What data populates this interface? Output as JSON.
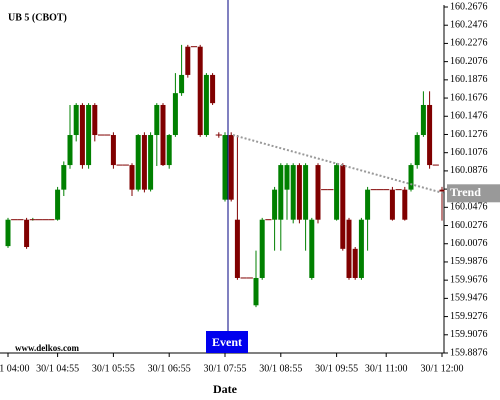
{
  "chart_data": {
    "type": "candlestick",
    "title": "UB 5 (CBOT)",
    "x_label": "Date",
    "watermark": "www.delkos.com",
    "event_label": "Event",
    "trend": {
      "label": "Trend",
      "values": [
        160.127,
        160.063
      ],
      "color": "#999999"
    },
    "up_color": "#008000",
    "down_color": "#800000",
    "categories": [
      "30/1 04:00",
      null,
      null,
      null,
      null,
      null,
      null,
      null,
      "30/1 04:55",
      null,
      null,
      null,
      null,
      null,
      null,
      null,
      null,
      "30/1 05:55",
      null,
      null,
      null,
      null,
      null,
      null,
      null,
      null,
      "30/1 06:55",
      null,
      null,
      null,
      null,
      null,
      null,
      null,
      null,
      "30/1 07:55",
      null,
      null,
      null,
      null,
      null,
      null,
      null,
      null,
      "30/1 08:55",
      null,
      null,
      null,
      null,
      null,
      null,
      null,
      null,
      "30/1 09:55",
      null,
      null,
      null,
      null,
      null,
      null,
      null,
      "30/1 11:00",
      null,
      null,
      null,
      null,
      null,
      null,
      null,
      null,
      "30/1 12:00"
    ],
    "open": [
      160.005,
      160.034,
      160.034,
      160.034,
      160.034,
      160.034,
      160.034,
      160.034,
      160.034,
      160.067,
      160.094,
      160.127,
      160.16,
      160.094,
      160.16,
      160.127,
      160.127,
      160.127,
      160.094,
      160.094,
      160.094,
      160.067,
      160.127,
      160.067,
      160.127,
      160.16,
      160.094,
      160.127,
      160.173,
      160.224,
      160.224,
      160.224,
      160.127,
      160.193,
      160.127,
      160.056,
      160.127,
      160.034,
      159.97,
      159.97,
      159.94,
      159.97,
      160.034,
      160.034,
      160.034,
      160.067,
      160.034,
      160.094,
      160.034,
      159.97,
      160.094,
      160.067,
      160.067,
      160.034,
      160.094,
      160.034,
      160.002,
      159.97,
      160.034,
      160.067,
      160.067,
      160.067,
      160.067,
      160.067,
      160.067,
      160.067,
      160.094,
      160.127,
      160.16,
      160.094,
      160.067
    ],
    "high": [
      160.036,
      160.034,
      160.034,
      160.036,
      160.036,
      160.034,
      160.034,
      160.034,
      160.07,
      160.098,
      160.16,
      160.162,
      160.162,
      160.162,
      160.162,
      160.127,
      160.127,
      160.13,
      160.094,
      160.094,
      160.096,
      160.128,
      160.13,
      160.13,
      160.162,
      160.162,
      160.128,
      160.195,
      160.226,
      160.226,
      160.224,
      160.226,
      160.195,
      160.195,
      160.13,
      160.13,
      160.13,
      160.127,
      159.97,
      159.97,
      160.0,
      160.036,
      160.034,
      160.07,
      160.096,
      160.096,
      160.096,
      160.096,
      160.096,
      160.036,
      160.096,
      160.067,
      160.067,
      160.096,
      160.096,
      160.036,
      160.004,
      160.036,
      160.07,
      160.067,
      160.067,
      160.067,
      160.07,
      160.067,
      160.07,
      160.096,
      160.13,
      160.175,
      160.175,
      160.094,
      160.07
    ],
    "low": [
      160.003,
      160.034,
      160.034,
      160.002,
      160.033,
      160.034,
      160.034,
      160.034,
      160.033,
      160.06,
      160.09,
      160.12,
      160.09,
      160.09,
      160.12,
      160.127,
      160.127,
      160.09,
      160.094,
      160.094,
      160.06,
      160.065,
      160.064,
      160.065,
      160.093,
      160.093,
      160.09,
      160.125,
      160.17,
      160.19,
      160.224,
      160.125,
      160.125,
      160.16,
      160.124,
      160.054,
      160.054,
      159.968,
      159.97,
      159.97,
      159.938,
      159.968,
      160.034,
      160.0,
      160.0,
      160.034,
      160.03,
      160.03,
      160.0,
      159.968,
      160.03,
      160.067,
      160.067,
      160.033,
      160.0,
      159.968,
      159.968,
      159.968,
      160.0,
      160.067,
      160.067,
      160.067,
      160.033,
      160.067,
      160.033,
      160.065,
      160.09,
      160.125,
      160.09,
      160.094,
      160.033
    ],
    "close": [
      160.034,
      160.034,
      160.034,
      160.004,
      160.034,
      160.034,
      160.034,
      160.034,
      160.067,
      160.094,
      160.127,
      160.16,
      160.094,
      160.16,
      160.127,
      160.127,
      160.127,
      160.094,
      160.094,
      160.094,
      160.067,
      160.127,
      160.067,
      160.127,
      160.16,
      160.094,
      160.127,
      160.173,
      160.193,
      160.193,
      160.224,
      160.127,
      160.193,
      160.162,
      160.126,
      160.127,
      160.056,
      159.97,
      159.97,
      159.97,
      159.97,
      160.034,
      160.034,
      160.067,
      160.094,
      160.094,
      160.094,
      160.034,
      160.094,
      160.034,
      160.034,
      160.067,
      160.067,
      160.094,
      160.002,
      159.97,
      159.97,
      160.034,
      160.067,
      160.067,
      160.067,
      160.067,
      160.034,
      160.067,
      160.034,
      160.094,
      160.127,
      160.16,
      160.094,
      160.094,
      160.065
    ],
    "ylim": [
      159.8876,
      160.2698
    ],
    "yticks": [
      160.2676,
      160.2476,
      160.2276,
      160.2076,
      160.1876,
      160.1676,
      160.1476,
      160.1276,
      160.1076,
      160.0876,
      160.0676,
      160.0476,
      160.0276,
      160.0076,
      159.9876,
      159.9676,
      159.9476,
      159.9276,
      159.9076,
      159.8876
    ]
  }
}
